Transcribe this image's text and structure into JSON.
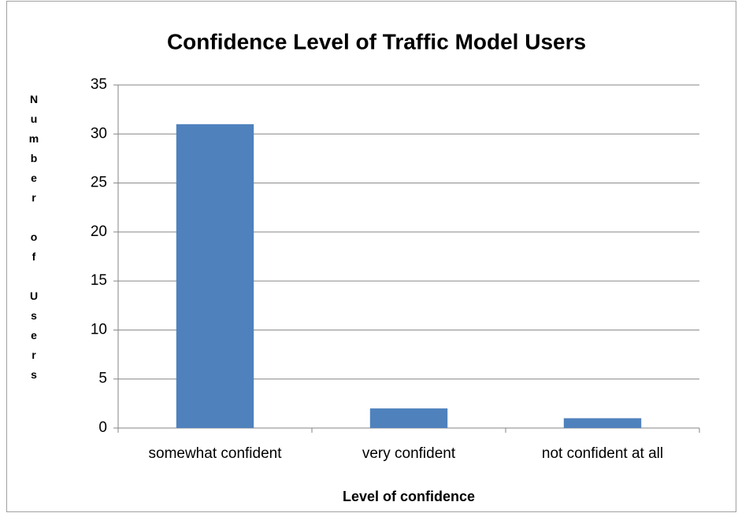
{
  "chart_data": {
    "type": "bar",
    "title": "Confidence Level of Traffic Model Users",
    "x_label": "Level of confidence",
    "y_label": "Number of Users",
    "categories": [
      "somewhat confident",
      "very confident",
      "not confident at all"
    ],
    "values": [
      31,
      2,
      1
    ],
    "color": "#4f81bd",
    "ylim": [
      0,
      35
    ],
    "yticks": [
      0,
      5,
      10,
      15,
      20,
      25,
      30,
      35
    ],
    "grid": true
  }
}
